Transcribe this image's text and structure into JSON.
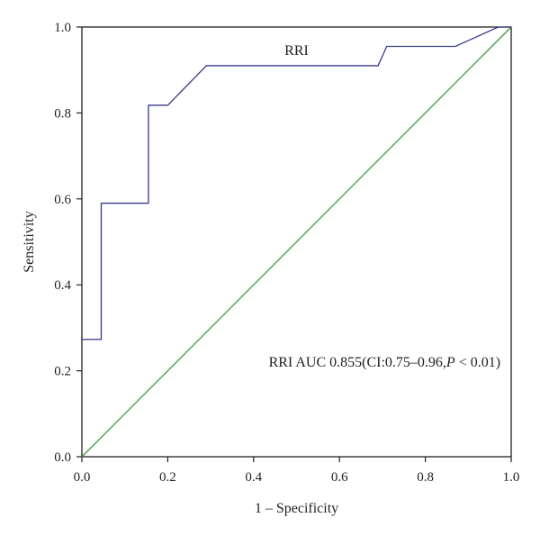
{
  "chart_data": {
    "type": "line",
    "xlabel": "1 – Specificity",
    "ylabel": "Sensitivity",
    "xlim": [
      0,
      1
    ],
    "ylim": [
      0,
      1
    ],
    "x_ticks": [
      "0.0",
      "0.2",
      "0.4",
      "0.6",
      "0.8",
      "1.0"
    ],
    "y_ticks": [
      "0.0",
      "0.2",
      "0.4",
      "0.6",
      "0.8",
      "1.0"
    ],
    "grid": false,
    "series": [
      {
        "name": "RRI",
        "color": "#3b3a8c",
        "x": [
          0.0,
          0.045,
          0.045,
          0.155,
          0.155,
          0.2,
          0.29,
          0.69,
          0.71,
          0.87,
          0.97,
          1.0
        ],
        "y": [
          0.273,
          0.273,
          0.59,
          0.59,
          0.818,
          0.818,
          0.91,
          0.91,
          0.955,
          0.955,
          1.0,
          1.0
        ]
      },
      {
        "name": "",
        "color": "#3c9a3c",
        "x": [
          0,
          1
        ],
        "y": [
          0,
          1
        ]
      }
    ],
    "annotations": [
      {
        "text": "RRI",
        "x": 0.5,
        "y": 0.935
      },
      {
        "text": "RRI AUC 0.855(CI:0.75–0.96,",
        "italic_text": "P",
        "tail_text": " < 0.01)",
        "x": 0.975,
        "y": 0.21
      }
    ]
  }
}
